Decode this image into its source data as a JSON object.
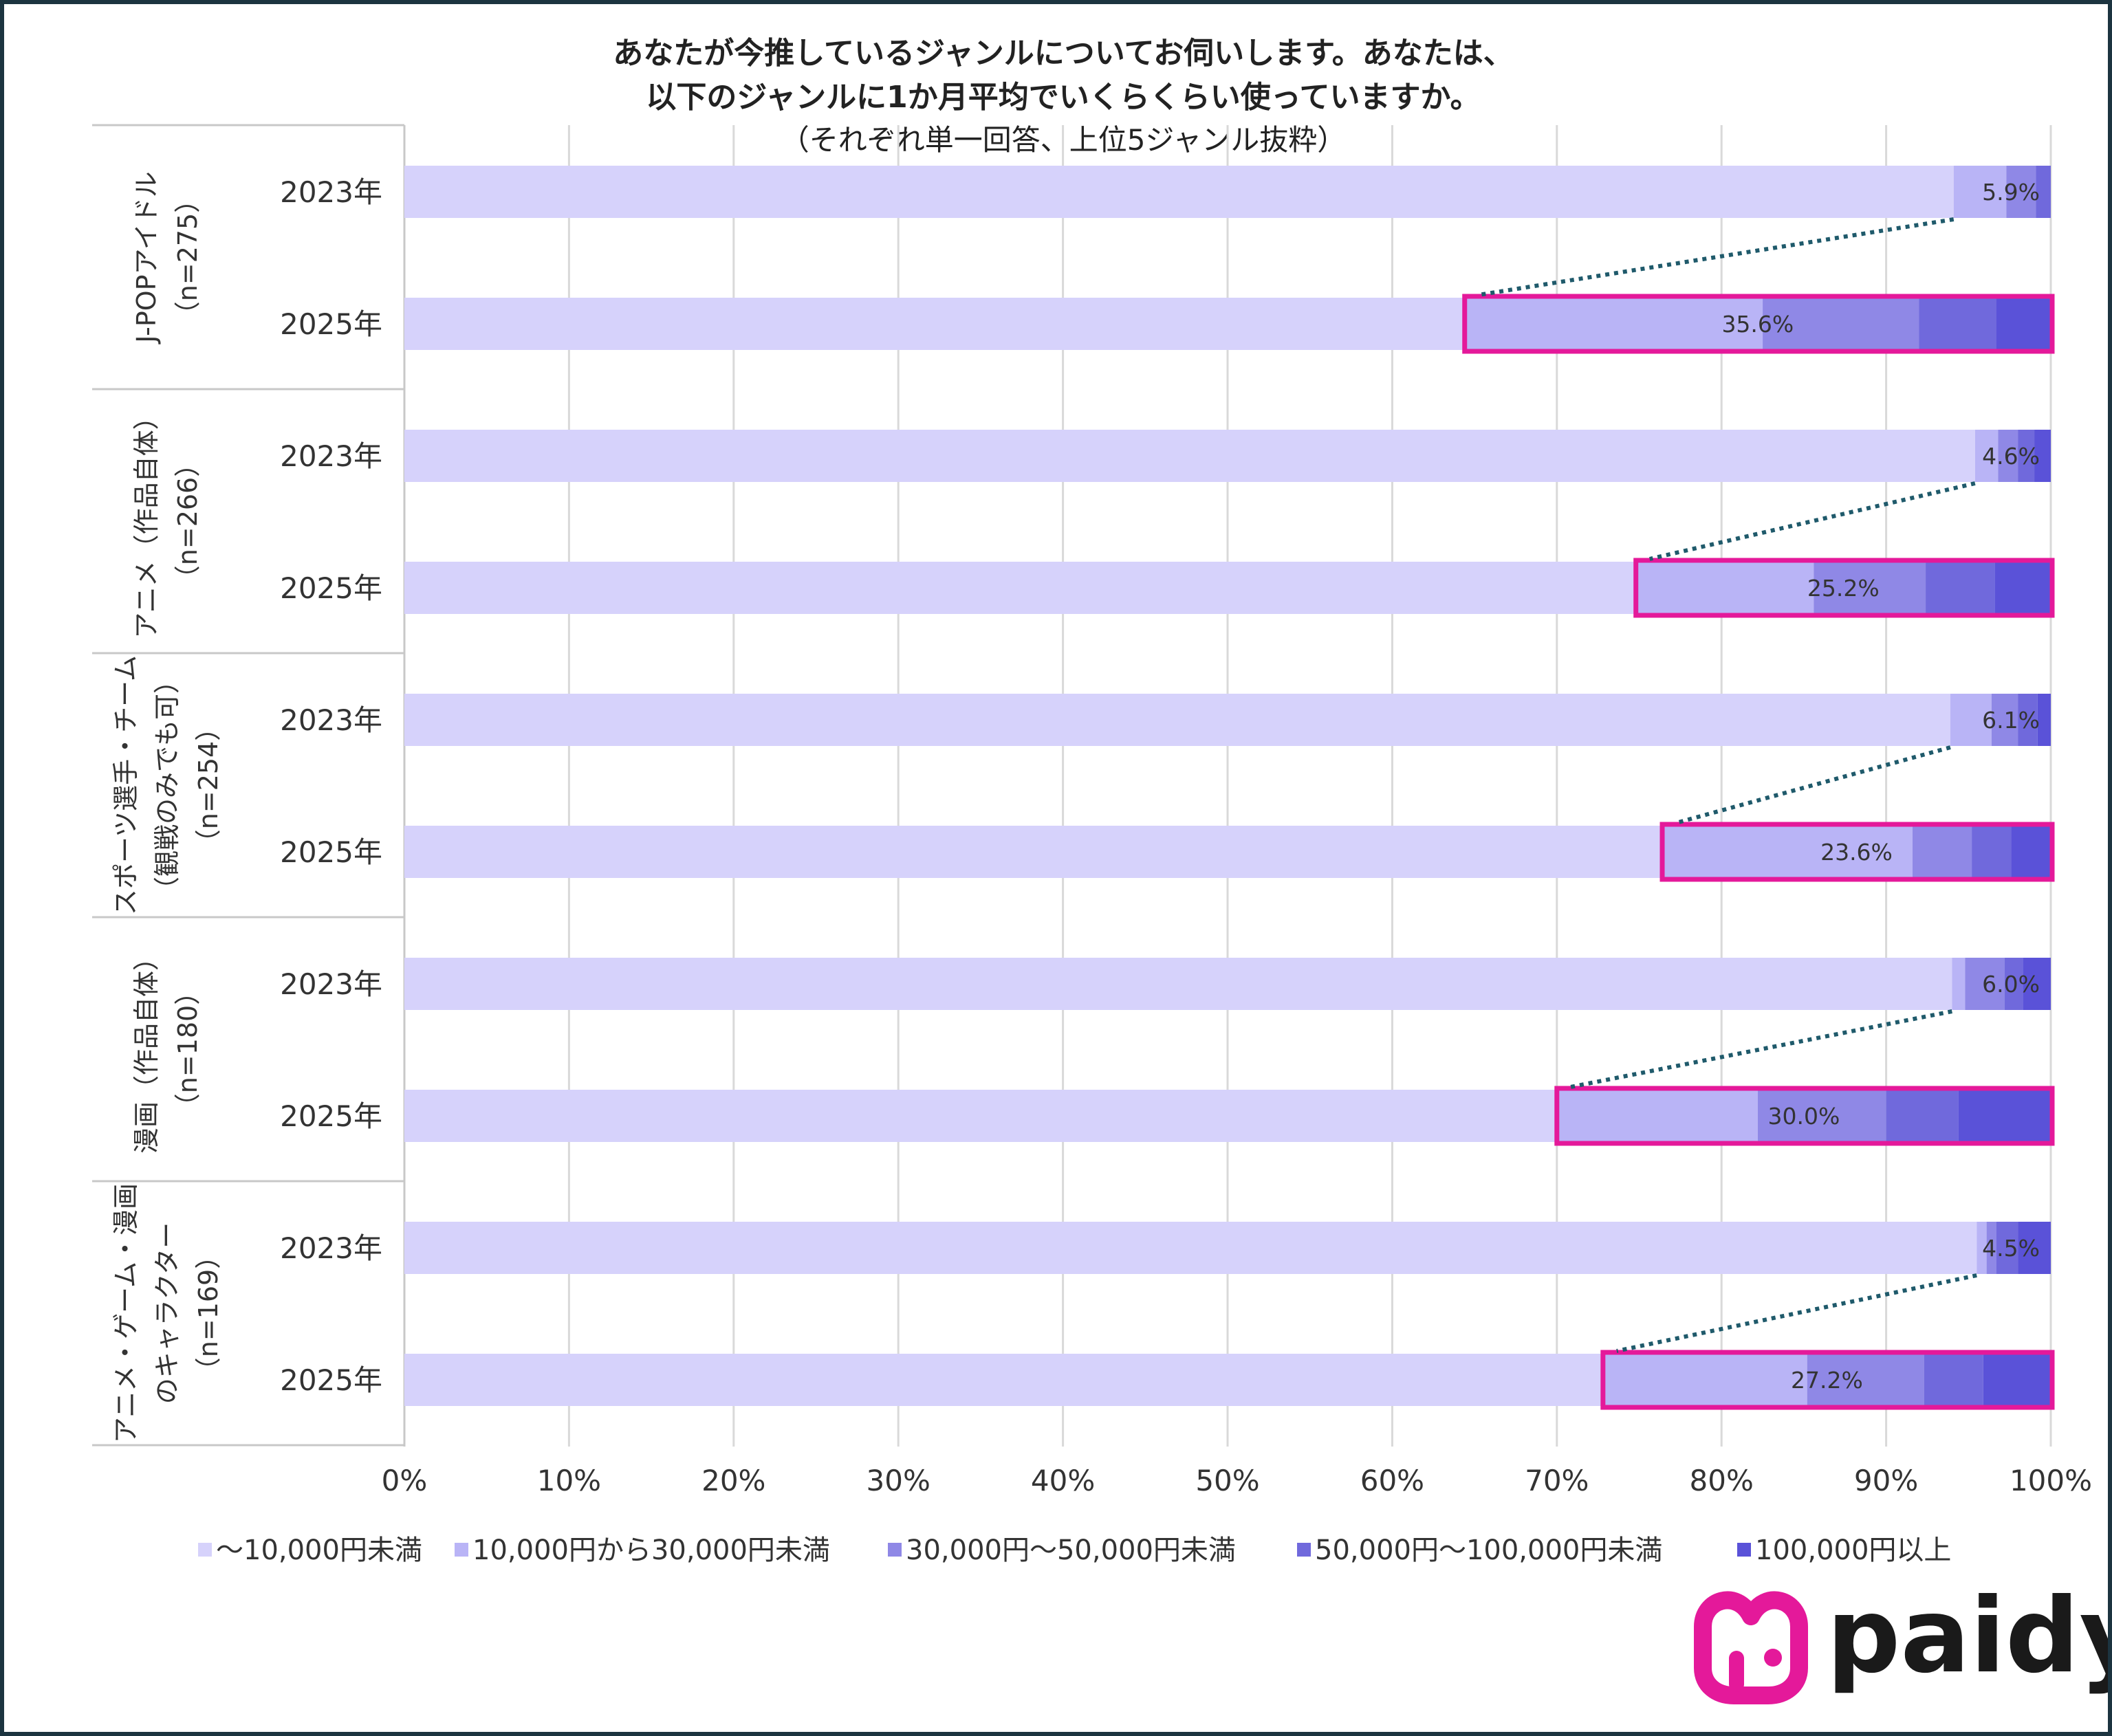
{
  "chart_data": {
    "type": "bar",
    "orientation": "horizontal",
    "stacked": true,
    "title_lines": [
      "あなたが今推しているジャンルについてお伺いします。あなたは、",
      "以下のジャンルに1か月平均でいくらくらい使っていますか。"
    ],
    "subtitle": "（それぞれ単一回答、上位5ジャンル抜粋）",
    "xlim": [
      0,
      100
    ],
    "x_ticks": [
      "0%",
      "10%",
      "20%",
      "30%",
      "40%",
      "50%",
      "60%",
      "70%",
      "80%",
      "90%",
      "100%"
    ],
    "grid": true,
    "legend_position": "bottom",
    "series": [
      {
        "name": "～10,000円未満",
        "color": "#d6d2fb"
      },
      {
        "name": "10,000円から30,000円未満",
        "color": "#b9b4f6"
      },
      {
        "name": "30,000円～50,000円未満",
        "color": "#8f88e6"
      },
      {
        "name": "50,000円～100,000円未満",
        "color": "#7069dc"
      },
      {
        "name": "100,000円以上",
        "color": "#5a52d8"
      }
    ],
    "groups": [
      {
        "label_lines": [
          "J-POPアイドル",
          "（n=275）"
        ],
        "bars": [
          {
            "year": "2023年",
            "values": [
              94.1,
              3.2,
              1.8,
              0.9,
              0.0
            ],
            "label": "5.9%",
            "highlight": false
          },
          {
            "year": "2025年",
            "values": [
              64.4,
              18.1,
              9.5,
              4.7,
              3.3
            ],
            "label": "35.6%",
            "highlight": true
          }
        ]
      },
      {
        "label_lines": [
          "アニメ（作品自体）",
          "（n=266）"
        ],
        "bars": [
          {
            "year": "2023年",
            "values": [
              95.4,
              1.4,
              1.2,
              1.0,
              1.0
            ],
            "label": "4.6%",
            "highlight": false
          },
          {
            "year": "2025年",
            "values": [
              74.8,
              10.8,
              6.8,
              4.2,
              3.4
            ],
            "label": "25.2%",
            "highlight": true
          }
        ]
      },
      {
        "label_lines": [
          "スポーツ選手・チーム",
          "（観戦のみでも可）",
          "（n=254）"
        ],
        "bars": [
          {
            "year": "2023年",
            "values": [
              93.9,
              2.5,
              1.6,
              1.2,
              0.8
            ],
            "label": "6.1%",
            "highlight": false
          },
          {
            "year": "2025年",
            "values": [
              76.4,
              15.2,
              3.6,
              2.4,
              2.4
            ],
            "label": "23.6%",
            "highlight": true
          }
        ]
      },
      {
        "label_lines": [
          "漫画（作品自体）",
          "（n=180）"
        ],
        "bars": [
          {
            "year": "2023年",
            "values": [
              94.0,
              0.8,
              2.4,
              1.1,
              1.7
            ],
            "label": "6.0%",
            "highlight": false
          },
          {
            "year": "2025年",
            "values": [
              70.0,
              12.2,
              7.8,
              4.4,
              5.6
            ],
            "label": "30.0%",
            "highlight": true
          }
        ]
      },
      {
        "label_lines": [
          "アニメ・ゲーム・漫画",
          "のキャラクター",
          "（n=169）"
        ],
        "bars": [
          {
            "year": "2023年",
            "values": [
              95.5,
              0.6,
              0.6,
              1.3,
              2.0
            ],
            "label": "4.5%",
            "highlight": false
          },
          {
            "year": "2025年",
            "values": [
              72.8,
              12.4,
              7.1,
              3.6,
              4.1
            ],
            "label": "27.2%",
            "highlight": true
          }
        ]
      }
    ]
  },
  "highlight_color": "#e4199a",
  "connector_color": "#1f5a6b",
  "brand": {
    "name": "paidy",
    "color": "#e4199a"
  }
}
